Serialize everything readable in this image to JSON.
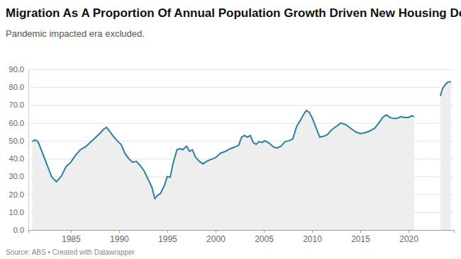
{
  "chart_data": {
    "type": "area",
    "title": "Migration As A Proportion Of Annual Population Growth Driven New Housing Demand",
    "subtitle": "Pandemic impacted era excluded.",
    "source": "Source: ABS • Created with Datawrapper",
    "color": "#2b7fa0",
    "grid": true,
    "xlim": [
      1980.6,
      2024.7
    ],
    "xticks": [
      1985,
      1990,
      1995,
      2000,
      2005,
      2010,
      2015,
      2020
    ],
    "ylim": [
      0,
      90
    ],
    "yticks": [
      {
        "value": 0,
        "label": "0.0"
      },
      {
        "value": 10,
        "label": "10.0"
      },
      {
        "value": 20,
        "label": "20.0"
      },
      {
        "value": 30,
        "label": "30.0"
      },
      {
        "value": 40,
        "label": "40.0"
      },
      {
        "value": 50,
        "label": "50.0"
      },
      {
        "value": 60,
        "label": "60.0"
      },
      {
        "value": 70,
        "label": "70.0"
      },
      {
        "value": 80,
        "label": "80.0"
      },
      {
        "value": 90,
        "label": "90.0"
      }
    ],
    "x": [
      1981.0,
      1981.3,
      1981.6,
      1982.0,
      1982.5,
      1983.0,
      1983.5,
      1984.0,
      1984.5,
      1985.0,
      1985.5,
      1986.0,
      1986.5,
      1987.0,
      1987.5,
      1988.0,
      1988.4,
      1988.7,
      1989.0,
      1989.4,
      1989.8,
      1990.2,
      1990.6,
      1991.0,
      1991.4,
      1991.8,
      1992.2,
      1992.6,
      1993.0,
      1993.4,
      1993.7,
      1994.0,
      1994.3,
      1994.7,
      1995.0,
      1995.3,
      1995.6,
      1996.0,
      1996.3,
      1996.6,
      1997.0,
      1997.3,
      1997.6,
      1997.9,
      1998.3,
      1998.7,
      1999.1,
      1999.5,
      2000.0,
      2000.5,
      2001.0,
      2001.5,
      2002.0,
      2002.4,
      2002.7,
      2003.0,
      2003.3,
      2003.6,
      2003.9,
      2004.2,
      2004.5,
      2004.8,
      2005.1,
      2005.6,
      2006.0,
      2006.4,
      2006.8,
      2007.2,
      2007.6,
      2008.0,
      2008.4,
      2008.8,
      2009.1,
      2009.4,
      2009.7,
      2010.0,
      2010.4,
      2010.8,
      2011.2,
      2011.6,
      2012.0,
      2012.5,
      2013.0,
      2013.5,
      2014.0,
      2014.5,
      2015.0,
      2015.5,
      2016.0,
      2016.5,
      2017.0,
      2017.3,
      2017.7,
      2018.1,
      2018.4,
      2018.8,
      2019.2,
      2019.6,
      2020.0,
      2020.3,
      2020.6,
      2022.0,
      2023.3,
      2023.5,
      2023.8,
      2024.1,
      2024.4
    ],
    "values": [
      49.5,
      50.5,
      49.5,
      44,
      37,
      30,
      27,
      30,
      35.5,
      38,
      42,
      45,
      46.5,
      49,
      51.5,
      54,
      56.5,
      57.5,
      55.5,
      52.5,
      50,
      48,
      43,
      40,
      38,
      38.5,
      36,
      33,
      28.5,
      24,
      17.5,
      19.5,
      20.5,
      25,
      30,
      29.5,
      37.5,
      45,
      45.5,
      45,
      47,
      44,
      45,
      41,
      38.5,
      37,
      38.5,
      39.5,
      40.5,
      43,
      44,
      45.5,
      46.5,
      47.5,
      52,
      53,
      52,
      53,
      49,
      48,
      49.5,
      49,
      50,
      48.5,
      46.5,
      46,
      47,
      49.5,
      50,
      51,
      58,
      61.5,
      64.5,
      67,
      66,
      63,
      57.5,
      52,
      52.5,
      53.5,
      56,
      58,
      60,
      59,
      57,
      55,
      54,
      54.5,
      55.5,
      57,
      60.5,
      63,
      64.5,
      63,
      62.5,
      62.5,
      63.5,
      63,
      63,
      64,
      63.5,
      null,
      75,
      79,
      81.5,
      83,
      83
    ]
  }
}
